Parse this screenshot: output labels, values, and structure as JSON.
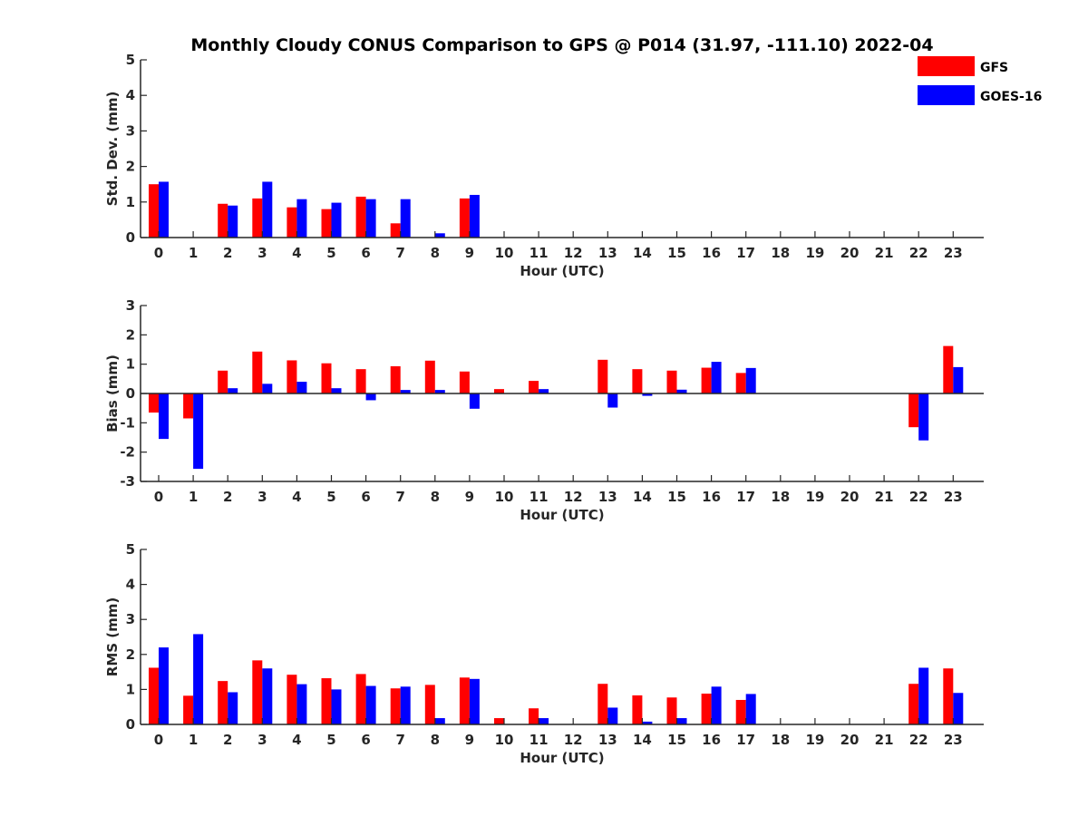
{
  "chart_data": {
    "title": "Monthly Cloudy CONUS Comparison to GPS @ P014 (31.97, -111.10) 2022-04",
    "legend": [
      {
        "name": "GFS",
        "color": "#ff0000"
      },
      {
        "name": "GOES-16",
        "color": "#0000ff"
      }
    ],
    "legend_position": "top-right",
    "categories": [
      "0",
      "1",
      "2",
      "3",
      "4",
      "5",
      "6",
      "7",
      "8",
      "9",
      "10",
      "11",
      "12",
      "13",
      "14",
      "15",
      "16",
      "17",
      "18",
      "19",
      "20",
      "21",
      "22",
      "23"
    ],
    "panels": [
      {
        "type": "bar",
        "ylabel": "Std. Dev. (mm)",
        "xlabel": "Hour (UTC)",
        "ylim": [
          0,
          5
        ],
        "yticks": [
          "0",
          "1",
          "2",
          "3",
          "4",
          "5"
        ],
        "series": [
          {
            "name": "GFS",
            "values": [
              1.5,
              null,
              0.95,
              1.1,
              0.85,
              0.8,
              1.15,
              0.4,
              null,
              1.1,
              null,
              null,
              null,
              null,
              null,
              null,
              null,
              null,
              null,
              null,
              null,
              null,
              null,
              null
            ]
          },
          {
            "name": "GOES-16",
            "values": [
              1.57,
              null,
              0.9,
              1.57,
              1.08,
              0.98,
              1.08,
              1.08,
              0.12,
              1.2,
              null,
              null,
              null,
              null,
              null,
              null,
              null,
              null,
              null,
              null,
              null,
              null,
              null,
              null
            ]
          }
        ]
      },
      {
        "type": "bar",
        "ylabel": "Bias (mm)",
        "xlabel": "Hour (UTC)",
        "ylim": [
          -3,
          3
        ],
        "yticks": [
          "-3",
          "-2",
          "-1",
          "0",
          "1",
          "2",
          "3"
        ],
        "series": [
          {
            "name": "GFS",
            "values": [
              -0.65,
              -0.85,
              0.78,
              1.43,
              1.13,
              1.03,
              0.83,
              0.93,
              1.12,
              0.75,
              0.15,
              0.43,
              null,
              1.15,
              0.83,
              0.78,
              0.88,
              0.7,
              null,
              null,
              null,
              null,
              -1.15,
              1.62
            ]
          },
          {
            "name": "GOES-16",
            "values": [
              -1.55,
              -2.57,
              0.18,
              0.33,
              0.4,
              0.18,
              -0.23,
              0.12,
              0.12,
              -0.52,
              null,
              0.15,
              null,
              -0.48,
              -0.08,
              0.13,
              1.08,
              0.87,
              null,
              null,
              null,
              null,
              -1.6,
              0.9
            ]
          }
        ]
      },
      {
        "type": "bar",
        "ylabel": "RMS (mm)",
        "xlabel": "Hour (UTC)",
        "ylim": [
          0,
          5
        ],
        "yticks": [
          "0",
          "1",
          "2",
          "3",
          "4",
          "5"
        ],
        "series": [
          {
            "name": "GFS",
            "values": [
              1.62,
              0.82,
              1.24,
              1.83,
              1.42,
              1.32,
              1.44,
              1.03,
              1.13,
              1.34,
              0.18,
              0.46,
              null,
              1.16,
              0.83,
              0.77,
              0.88,
              0.7,
              null,
              null,
              null,
              null,
              1.16,
              1.6
            ]
          },
          {
            "name": "GOES-16",
            "values": [
              2.2,
              2.58,
              0.92,
              1.6,
              1.15,
              1.0,
              1.1,
              1.08,
              0.18,
              1.3,
              null,
              0.18,
              null,
              0.48,
              0.08,
              0.18,
              1.08,
              0.87,
              null,
              null,
              null,
              null,
              1.62,
              0.9
            ]
          }
        ]
      }
    ]
  }
}
